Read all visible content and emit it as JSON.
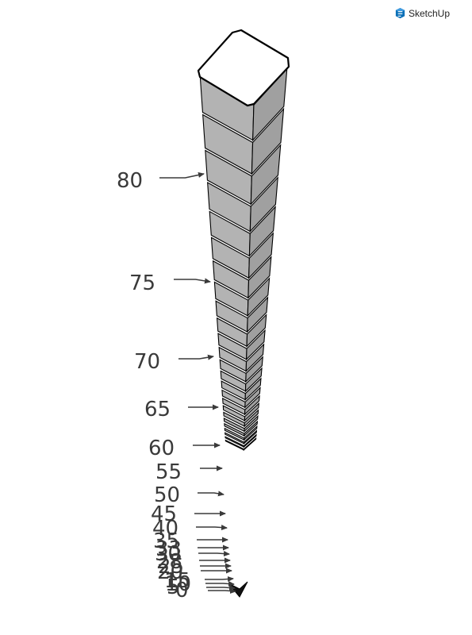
{
  "brand": {
    "name": "SketchUp",
    "icon": "sketchup-logo-icon"
  },
  "colors": {
    "side_left": "#b3b3b3",
    "side_right": "#a0a0a0",
    "top": "#ffffff",
    "outline": "#000000",
    "label": "#3a3a3a"
  },
  "markers": [
    "80",
    "75",
    "70",
    "65",
    "60",
    "55",
    "50",
    "45",
    "40",
    "35",
    "33",
    "30",
    "28",
    "25",
    "20",
    "15",
    "10",
    "5",
    "0"
  ]
}
